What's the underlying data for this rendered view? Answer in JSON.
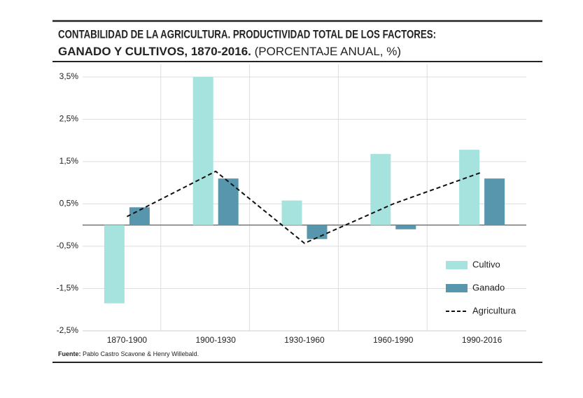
{
  "chart_data": {
    "type": "bar",
    "title": [
      "CONTABILIDAD DE LA AGRICULTURA. PRODUCTIVIDAD TOTAL DE LOS FACTORES:",
      "GANADO Y CULTIVOS, 1870-2016."
    ],
    "subtitle": "(PORCENTAJE ANUAL, %)",
    "categories": [
      "1870-1900",
      "1900-1930",
      "1930-1960",
      "1960-1990",
      "1990-2016"
    ],
    "series": [
      {
        "name": "Cultivo",
        "type": "bar",
        "color": "#a6e3df",
        "values": [
          -1.85,
          3.5,
          0.58,
          1.68,
          1.78
        ]
      },
      {
        "name": "Ganado",
        "type": "bar",
        "color": "#5896ae",
        "values": [
          0.42,
          1.1,
          -0.33,
          -0.1,
          1.1
        ]
      },
      {
        "name": "Agricultura",
        "type": "line",
        "color": "#111111",
        "dashed": true,
        "values": [
          0.2,
          1.27,
          -0.43,
          0.5,
          1.25
        ]
      }
    ],
    "ylim": [
      -2.5,
      3.5
    ],
    "yticks": [
      {
        "value": 3.5,
        "label": "3,5%"
      },
      {
        "value": 2.5,
        "label": "2,5%"
      },
      {
        "value": 1.5,
        "label": "1,5%"
      },
      {
        "value": 0.5,
        "label": "0,5%"
      },
      {
        "value": -0.5,
        "label": "-0,5%"
      },
      {
        "value": -1.5,
        "label": "-1,5%"
      },
      {
        "value": -2.5,
        "label": "-2,5%"
      }
    ],
    "grid": true,
    "legend": "right",
    "source_label": "Fuente:",
    "source_text": "Pablo Castro Scavone & Henry Willebald."
  }
}
